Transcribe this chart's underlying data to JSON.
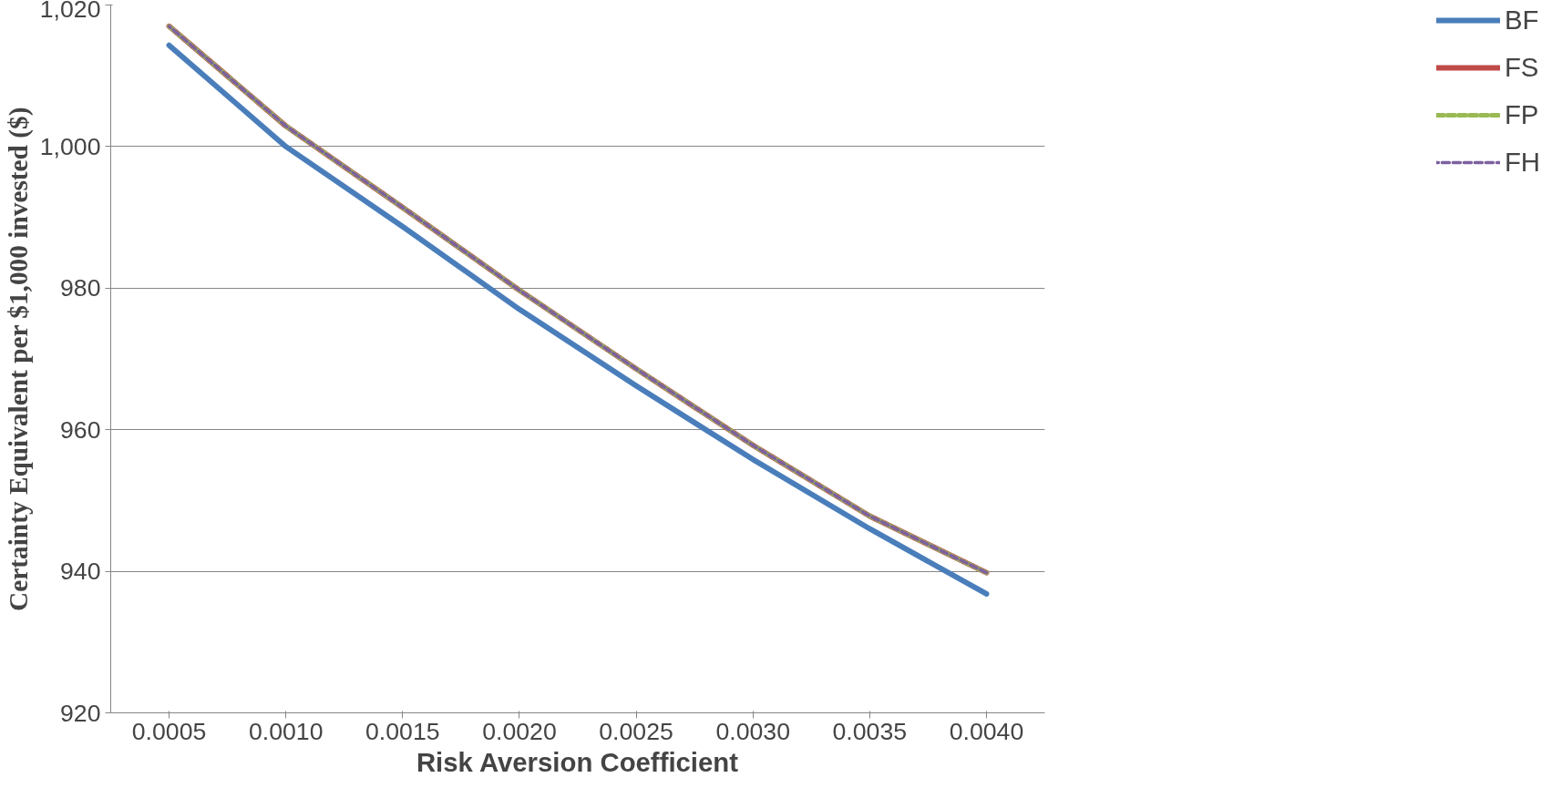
{
  "chart_data": {
    "type": "line",
    "xlabel": "Risk Aversion Coefficient",
    "ylabel": "Certainty Equivalent per $1,000 invested ($)",
    "categories": [
      "0.0005",
      "0.0010",
      "0.0015",
      "0.0020",
      "0.0025",
      "0.0030",
      "0.0035",
      "0.0040"
    ],
    "ylim": [
      920,
      1020
    ],
    "yticks": [
      920,
      940,
      960,
      980,
      {
        "value": 1000,
        "label": "1,000"
      },
      {
        "value": 1020,
        "label": "1,020"
      }
    ],
    "grid": "y",
    "legend": "right",
    "marker": "none",
    "series": [
      {
        "name": "BF",
        "color": "#4a7ebb",
        "line_style": "solid",
        "values": [
          1014.3,
          1000.0,
          988.7,
          977.0,
          966.2,
          955.8,
          946.0,
          936.8
        ]
      },
      {
        "name": "FS",
        "color": "#be4b48",
        "line_style": "solid",
        "values": [
          1017.0,
          1002.9,
          991.4,
          979.7,
          968.6,
          957.8,
          947.8,
          939.8
        ]
      },
      {
        "name": "FP",
        "color": "#98b954",
        "line_style": "dashed",
        "values": [
          1017.0,
          1002.9,
          991.4,
          979.7,
          968.6,
          957.8,
          947.8,
          939.8
        ]
      },
      {
        "name": "FH",
        "color": "#7d60a0",
        "line_style": "dashed",
        "values": [
          1017.0,
          1002.9,
          991.4,
          979.7,
          968.6,
          957.8,
          947.8,
          939.8
        ]
      }
    ]
  }
}
